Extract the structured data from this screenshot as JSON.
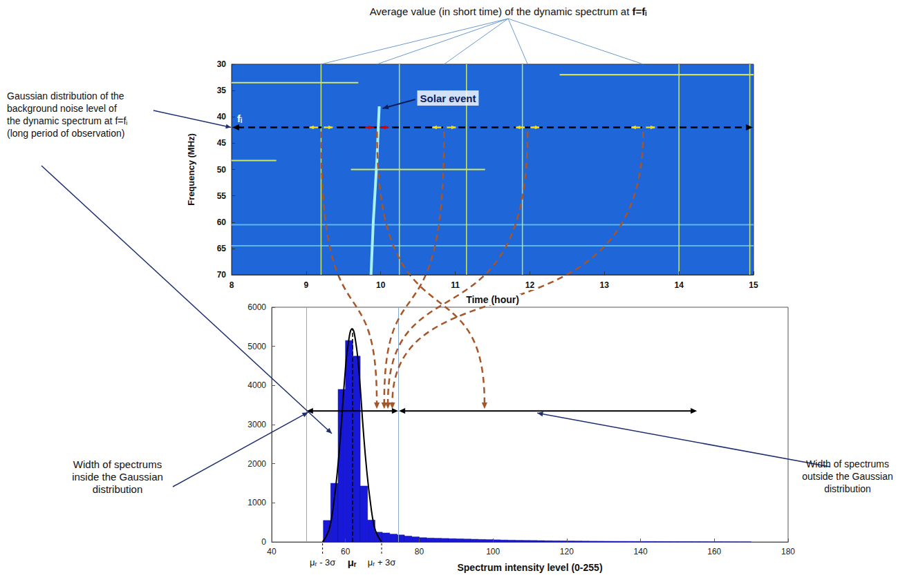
{
  "chart_data": [
    {
      "type": "spectrogram",
      "xlabel": "Time (hour)",
      "ylabel": "Frequency (MHz)",
      "xlim": [
        8,
        15
      ],
      "ylim": [
        30,
        70
      ],
      "xticks": [
        8,
        9,
        10,
        11,
        12,
        13,
        14,
        15
      ],
      "yticks": [
        30,
        35,
        40,
        45,
        50,
        55,
        60,
        65,
        70
      ],
      "color": "#1f66d9",
      "series": [
        {
          "type": "line",
          "color": "#e8ee5a",
          "x": [
            12.4,
            15
          ],
          "values": [
            32,
            32
          ]
        },
        {
          "type": "line",
          "color": "#d4e86a",
          "x": [
            8,
            9.7
          ],
          "values": [
            33.5,
            33.5
          ]
        },
        {
          "type": "line",
          "color": "#c8e860",
          "x": [
            8,
            8.6
          ],
          "values": [
            48.3,
            48.3
          ]
        },
        {
          "type": "line",
          "color": "#d6ea5c",
          "x": [
            9.6,
            11.4
          ],
          "values": [
            50,
            50
          ]
        },
        {
          "type": "line",
          "color": "#5bb8ee",
          "x": [
            8,
            15
          ],
          "values": [
            60.5,
            60.5
          ]
        },
        {
          "type": "line",
          "color": "#5bb8ee",
          "x": [
            8,
            15
          ],
          "values": [
            64.5,
            64.5
          ]
        },
        {
          "type": "line",
          "color": "#a8f2f5",
          "x": [
            9.98,
            9.95,
            9.9,
            9.87
          ],
          "values": [
            38,
            48,
            60,
            70
          ]
        },
        {
          "type": "line",
          "color": "#c9e86a",
          "x": [
            9.2,
            9.2
          ],
          "values": [
            30,
            70
          ]
        },
        {
          "type": "line",
          "color": "#c9e86a",
          "x": [
            10.25,
            10.25
          ],
          "values": [
            30,
            70
          ]
        },
        {
          "type": "line",
          "color": "#c9e86a",
          "x": [
            11.15,
            11.15
          ],
          "values": [
            30,
            70
          ]
        },
        {
          "type": "line",
          "color": "#c9e86a",
          "x": [
            11.9,
            11.9
          ],
          "values": [
            30,
            70
          ]
        },
        {
          "type": "line",
          "color": "#c9e86a",
          "x": [
            14.0,
            14.0
          ],
          "values": [
            30,
            70
          ]
        },
        {
          "type": "line",
          "color": "#c9e86a",
          "x": [
            14.95,
            14.95
          ],
          "values": [
            30,
            70
          ]
        }
      ]
    },
    {
      "type": "histogram",
      "xlabel": "Spectrum intensity level (0-255)",
      "xlim": [
        40,
        180
      ],
      "ylim": [
        0,
        6000
      ],
      "xticks": [
        40,
        60,
        80,
        100,
        120,
        140,
        160,
        180
      ],
      "yticks": [
        0,
        1000,
        2000,
        3000,
        4000,
        5000,
        6000
      ],
      "color": "#1818d8",
      "bins": [
        54,
        56,
        58,
        60,
        62,
        64,
        66,
        68,
        70,
        72,
        74,
        76,
        78,
        80,
        82,
        84,
        86,
        88,
        90,
        92,
        94,
        96,
        98,
        100,
        102,
        104,
        106,
        108,
        110,
        112,
        114,
        116,
        118,
        120,
        122,
        124,
        126,
        128,
        130,
        132,
        134,
        136,
        138,
        140,
        142,
        144,
        146,
        148,
        150,
        152,
        154,
        156,
        158,
        160,
        162,
        164,
        166,
        168,
        170
      ],
      "counts": [
        550,
        1500,
        3900,
        5150,
        4750,
        1430,
        560,
        250,
        230,
        200,
        180,
        150,
        130,
        110,
        100,
        95,
        90,
        85,
        80,
        75,
        70,
        65,
        60,
        55,
        50,
        46,
        42,
        40,
        38,
        35,
        32,
        30,
        28,
        26,
        24,
        22,
        20,
        19,
        18,
        17,
        16,
        15,
        14,
        13,
        12,
        11,
        10,
        9,
        8,
        8,
        7,
        6,
        5,
        5,
        4,
        3,
        2,
        2
      ],
      "series": [
        {
          "type": "line",
          "color": "#000000",
          "x": [
            53.8,
            54.8,
            55.8,
            56.8,
            57.8,
            58.8,
            59.8,
            60.8,
            61.8,
            62.8,
            63.8,
            64.8,
            65.8,
            66.8,
            67.8,
            68.8,
            69.8
          ],
          "values": [
            0,
            150,
            400,
            980,
            1800,
            2900,
            4200,
            5100,
            5450,
            5100,
            4200,
            2900,
            1800,
            980,
            400,
            150,
            0
          ]
        }
      ]
    }
  ],
  "annotations": {
    "average_note": [
      "Average value (in short time) of the dynamic spectrum at ",
      "f=fᵢ"
    ],
    "solar_event": {
      "text": "Solar event",
      "time": 9.98,
      "frequency": 38
    },
    "f_i": {
      "label": "fᵢ",
      "frequency": 42
    },
    "windows": [
      {
        "time": 9.2,
        "target": 68.5,
        "color": "#ffe000"
      },
      {
        "time": 9.95,
        "target": 97.7,
        "color": "#e00000"
      },
      {
        "time": 10.85,
        "target": 70.5,
        "color": "#ffe000"
      },
      {
        "time": 11.97,
        "target": 71.5,
        "color": "#ffe000"
      },
      {
        "time": 13.52,
        "target": 72.7,
        "color": "#ffe000"
      }
    ],
    "gaussian_note": "Gaussian distribution of the background noise level of the dynamic spectrum at f=fᵢ (long period of observation)",
    "arrow_level": 3350,
    "inside": {
      "text": "Width of spectrums inside the Gaussian distribution",
      "range": [
        49.5,
        74.3
      ]
    },
    "outside": {
      "text": "Width of spectrums outside the Gaussian distribution",
      "range": [
        74.3,
        155.3
      ]
    },
    "mu": {
      "value": 61.8,
      "label": "μᵣ",
      "top": 5450
    },
    "mu_minus_3sigma": {
      "value": 53.8,
      "label": "μᵣ - 3σ"
    },
    "mu_plus_3sigma": {
      "value": 69.8,
      "label": "μᵣ + 3σ"
    }
  }
}
